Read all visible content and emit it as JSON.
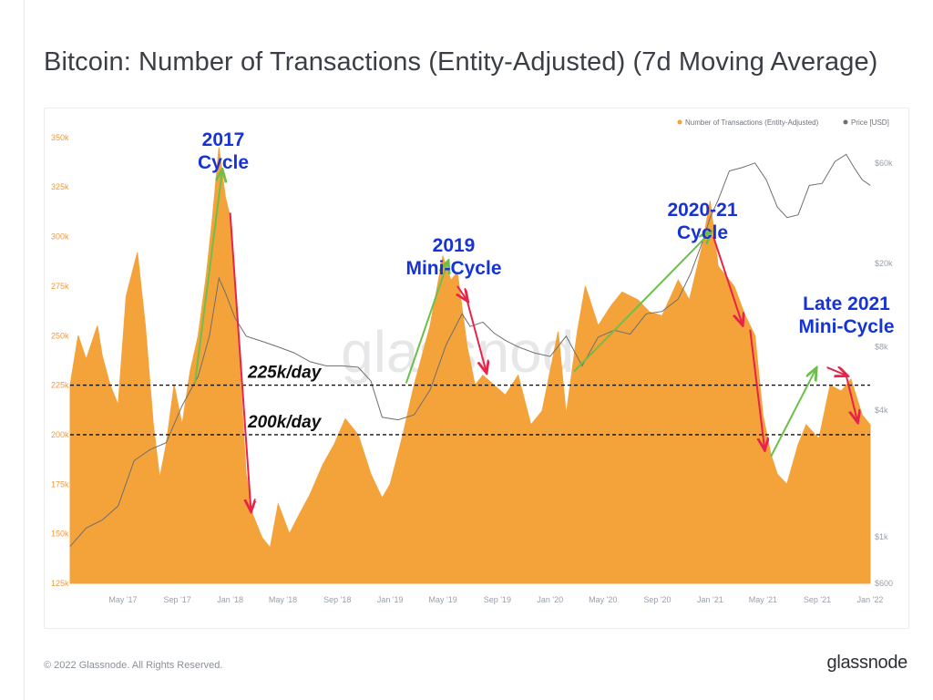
{
  "title": "Bitcoin: Number of Transactions (Entity-Adjusted) (7d Moving Average)",
  "footer": "© 2022 Glassnode. All Rights Reserved.",
  "brand": "glassnode",
  "watermark": "glassnode",
  "colors": {
    "tx": "#f4a23a",
    "price": "#6f6f6f",
    "up": "#6cc04a",
    "down": "#e8234a",
    "annotation": "#1633d6"
  },
  "chart_data": {
    "type": "area",
    "title": "Bitcoin: Number of Transactions (Entity-Adjusted) (7d Moving Average)",
    "legend": [
      "Number of Transactions (Entity-Adjusted)",
      "Price [USD]"
    ],
    "legend_position": "top-right",
    "x_ticks": [
      "May '17",
      "Sep '17",
      "Jan '18",
      "May '18",
      "Sep '18",
      "Jan '19",
      "May '19",
      "Sep '19",
      "Jan '20",
      "May '20",
      "Sep '20",
      "Jan '21",
      "May '21",
      "Sep '21",
      "Jan '22"
    ],
    "x_range": [
      2017.0,
      2022.0
    ],
    "y_left": {
      "ticks": [
        "350k",
        "325k",
        "300k",
        "275k",
        "250k",
        "225k",
        "200k",
        "175k",
        "150k",
        "125k"
      ],
      "range": [
        125000,
        355000
      ]
    },
    "y_right": {
      "ticks": [
        "$60k",
        "$20k",
        "$8k",
        "$4k",
        "$1k",
        "$600"
      ],
      "scale": "log",
      "range": [
        600,
        80000
      ]
    },
    "series": [
      {
        "name": "Number of Transactions (Entity-Adjusted)",
        "x": [
          2017.0,
          2017.05,
          2017.1,
          2017.17,
          2017.2,
          2017.25,
          2017.3,
          2017.35,
          2017.42,
          2017.47,
          2017.52,
          2017.56,
          2017.6,
          2017.65,
          2017.7,
          2017.75,
          2017.8,
          2017.85,
          2017.89,
          2017.93,
          2017.97,
          2018.0,
          2018.04,
          2018.07,
          2018.1,
          2018.14,
          2018.2,
          2018.25,
          2018.3,
          2018.37,
          2018.42,
          2018.5,
          2018.58,
          2018.65,
          2018.72,
          2018.8,
          2018.88,
          2018.95,
          2019.0,
          2019.08,
          2019.15,
          2019.25,
          2019.33,
          2019.38,
          2019.42,
          2019.48,
          2019.53,
          2019.58,
          2019.65,
          2019.72,
          2019.8,
          2019.88,
          2019.95,
          2020.05,
          2020.1,
          2020.17,
          2020.22,
          2020.3,
          2020.38,
          2020.45,
          2020.55,
          2020.62,
          2020.7,
          2020.8,
          2020.87,
          2020.95,
          2021.0,
          2021.05,
          2021.1,
          2021.15,
          2021.22,
          2021.28,
          2021.33,
          2021.38,
          2021.42,
          2021.48,
          2021.55,
          2021.6,
          2021.68,
          2021.75,
          2021.82,
          2021.88,
          2021.95,
          2022.0
        ],
        "values": [
          225000,
          250000,
          238000,
          255000,
          240000,
          225000,
          215000,
          270000,
          292000,
          255000,
          205000,
          178000,
          195000,
          225000,
          205000,
          232000,
          250000,
          280000,
          310000,
          345000,
          320000,
          310000,
          268000,
          220000,
          180000,
          160000,
          148000,
          143000,
          165000,
          150000,
          158000,
          170000,
          185000,
          195000,
          208000,
          200000,
          180000,
          168000,
          175000,
          200000,
          225000,
          255000,
          290000,
          278000,
          282000,
          245000,
          225000,
          230000,
          225000,
          220000,
          230000,
          205000,
          212000,
          252000,
          210000,
          252000,
          275000,
          255000,
          265000,
          272000,
          268000,
          262000,
          260000,
          278000,
          268000,
          295000,
          318000,
          285000,
          280000,
          275000,
          260000,
          250000,
          210000,
          190000,
          180000,
          175000,
          195000,
          205000,
          198000,
          225000,
          222000,
          228000,
          210000,
          205000
        ]
      },
      {
        "name": "Price [USD]",
        "x": [
          2017.0,
          2017.1,
          2017.2,
          2017.3,
          2017.4,
          2017.5,
          2017.6,
          2017.7,
          2017.8,
          2017.87,
          2017.93,
          2017.97,
          2018.03,
          2018.1,
          2018.2,
          2018.3,
          2018.4,
          2018.5,
          2018.6,
          2018.7,
          2018.8,
          2018.88,
          2018.95,
          2019.05,
          2019.15,
          2019.25,
          2019.35,
          2019.45,
          2019.5,
          2019.58,
          2019.65,
          2019.72,
          2019.8,
          2019.9,
          2020.0,
          2020.1,
          2020.2,
          2020.3,
          2020.4,
          2020.5,
          2020.6,
          2020.7,
          2020.8,
          2020.88,
          2020.95,
          2021.0,
          2021.05,
          2021.12,
          2021.2,
          2021.28,
          2021.35,
          2021.42,
          2021.48,
          2021.55,
          2021.62,
          2021.7,
          2021.78,
          2021.85,
          2021.9,
          2021.95,
          2022.0
        ],
        "values": [
          900,
          1100,
          1200,
          1400,
          2300,
          2600,
          2800,
          4200,
          5800,
          9000,
          17000,
          14500,
          11000,
          9000,
          8500,
          8000,
          7500,
          6800,
          6500,
          6500,
          6400,
          5500,
          3700,
          3600,
          3800,
          5000,
          8200,
          11500,
          10000,
          10500,
          9300,
          8600,
          8000,
          7500,
          7200,
          9000,
          6500,
          8900,
          9600,
          9200,
          11500,
          11800,
          13500,
          18000,
          25000,
          33000,
          40000,
          55000,
          57000,
          60000,
          50000,
          37000,
          33000,
          34000,
          47000,
          48000,
          61000,
          66000,
          57000,
          50000,
          47000
        ]
      }
    ],
    "reference_lines": [
      {
        "label": "225k/day",
        "value": 225000
      },
      {
        "label": "200k/day",
        "value": 200000
      }
    ],
    "annotations": [
      {
        "lines": [
          "2017",
          "Cycle"
        ]
      },
      {
        "lines": [
          "2019",
          "Mini-Cycle"
        ]
      },
      {
        "lines": [
          "2020-21",
          "Cycle"
        ]
      },
      {
        "lines": [
          "Late 2021",
          "Mini-Cycle"
        ]
      }
    ],
    "trend_arrows": [
      {
        "kind": "up",
        "from": [
          2017.78,
          226000
        ],
        "to": [
          2017.95,
          333000
        ]
      },
      {
        "kind": "down",
        "from": [
          2018.0,
          312000
        ],
        "to": [
          2018.13,
          162000
        ]
      },
      {
        "kind": "up",
        "from": [
          2019.1,
          226000
        ],
        "to": [
          2019.36,
          287000
        ]
      },
      {
        "kind": "down",
        "from": [
          2019.42,
          275000
        ],
        "to": [
          2019.48,
          268000
        ]
      },
      {
        "kind": "down",
        "from": [
          2019.48,
          268000
        ],
        "to": [
          2019.6,
          232000
        ]
      },
      {
        "kind": "up",
        "from": [
          2020.15,
          232000
        ],
        "to": [
          2021.0,
          302000
        ]
      },
      {
        "kind": "down",
        "from": [
          2021.02,
          300000
        ],
        "to": [
          2021.2,
          256000
        ]
      },
      {
        "kind": "down",
        "from": [
          2021.25,
          253000
        ],
        "to": [
          2021.34,
          193000
        ]
      },
      {
        "kind": "up",
        "from": [
          2021.38,
          189000
        ],
        "to": [
          2021.66,
          233000
        ]
      },
      {
        "kind": "down",
        "from": [
          2021.73,
          234000
        ],
        "to": [
          2021.85,
          230000
        ]
      },
      {
        "kind": "down",
        "from": [
          2021.85,
          230000
        ],
        "to": [
          2021.92,
          207000
        ]
      }
    ]
  }
}
